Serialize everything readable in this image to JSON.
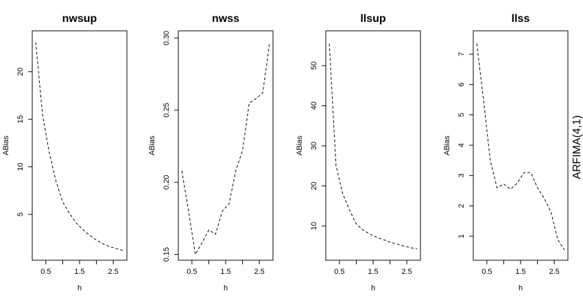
{
  "chart_data": [
    {
      "type": "line",
      "title": "nwsup",
      "x_label": "h",
      "y_label": "ABias",
      "x": [
        0.2,
        0.4,
        0.6,
        0.8,
        1.0,
        1.2,
        1.4,
        1.6,
        1.8,
        2.0,
        2.2,
        2.4,
        2.6,
        2.8
      ],
      "series": [
        {
          "color": "#000000",
          "values": [
            23.1,
            15.5,
            11.5,
            8.5,
            6.3,
            5.1,
            4.1,
            3.4,
            2.8,
            2.3,
            1.9,
            1.6,
            1.4,
            1.2
          ]
        }
      ],
      "xlim": [
        0.096,
        2.904
      ],
      "xticks": [
        0.5,
        1.5,
        2.5
      ],
      "xticks_unlabeled": [
        1,
        2
      ],
      "ylim": [
        0.18,
        24.3
      ],
      "yticks": [
        5,
        10,
        15,
        20
      ]
    },
    {
      "type": "line",
      "title": "nwss",
      "x_label": "h",
      "y_label": "ABias",
      "x": [
        0.2,
        0.4,
        0.6,
        0.8,
        1.0,
        1.2,
        1.4,
        1.6,
        1.8,
        2.0,
        2.2,
        2.4,
        2.6,
        2.8
      ],
      "series": [
        {
          "color": "#000000",
          "values": [
            0.208,
            0.18,
            0.15,
            0.158,
            0.167,
            0.164,
            0.18,
            0.185,
            0.208,
            0.222,
            0.255,
            0.258,
            0.262,
            0.296
          ]
        }
      ],
      "xlim": [
        0.096,
        2.904
      ],
      "xticks": [
        0.5,
        1.5,
        2.5
      ],
      "xticks_unlabeled": [
        1,
        2
      ],
      "ylim": [
        0.146,
        0.305
      ],
      "yticks": [
        {
          "value": 0.15,
          "label": "0.15"
        },
        {
          "value": 0.2,
          "label": "0.20"
        },
        {
          "value": 0.25,
          "label": "0.25"
        },
        {
          "value": 0.3,
          "label": "0.30"
        }
      ]
    },
    {
      "type": "line",
      "title": "llsup",
      "x_label": "h",
      "y_label": "ABias",
      "x": [
        0.2,
        0.4,
        0.6,
        0.8,
        1.0,
        1.2,
        1.4,
        1.6,
        1.8,
        2.0,
        2.2,
        2.4,
        2.6,
        2.8
      ],
      "series": [
        {
          "color": "#000000",
          "values": [
            55.5,
            25,
            18,
            14,
            10.5,
            9,
            8,
            7.2,
            6.6,
            6,
            5.5,
            5,
            4.6,
            4.3
          ]
        }
      ],
      "xlim": [
        0.096,
        2.904
      ],
      "xticks": [
        0.5,
        1.5,
        2.5
      ],
      "xticks_unlabeled": [
        1,
        2
      ],
      "ylim": [
        1.45,
        58.7
      ],
      "yticks": [
        10,
        20,
        30,
        40,
        50
      ]
    },
    {
      "type": "line",
      "title": "llss",
      "x_label": "h",
      "y_label": "ABias",
      "x": [
        0.2,
        0.4,
        0.6,
        0.8,
        1.0,
        1.2,
        1.4,
        1.6,
        1.8,
        2.0,
        2.2,
        2.4,
        2.6,
        2.8
      ],
      "series": [
        {
          "color": "#000000",
          "values": [
            7.35,
            5.5,
            3.5,
            2.6,
            2.72,
            2.55,
            2.75,
            3.1,
            3.1,
            2.6,
            2.25,
            1.8,
            0.9,
            0.55
          ]
        }
      ],
      "xlim": [
        0.096,
        2.904
      ],
      "xticks": [
        0.5,
        1.5,
        2.5
      ],
      "xticks_unlabeled": [
        1,
        2
      ],
      "ylim": [
        0.21,
        7.77
      ],
      "yticks": [
        1,
        2,
        3,
        4,
        5,
        6,
        7
      ]
    }
  ],
  "side_label": "ARFIMA(4,1)"
}
